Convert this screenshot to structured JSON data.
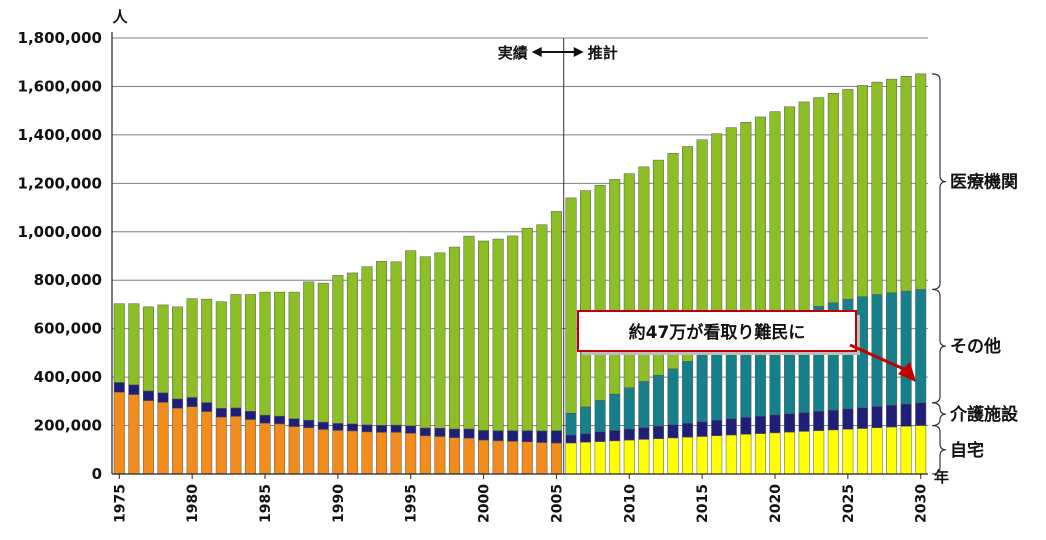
{
  "chart_data": {
    "type": "bar",
    "stacked": true,
    "title": "",
    "ylabel": "人",
    "xlabel": "年",
    "ylim": [
      0,
      1800000
    ],
    "yticks": [
      0,
      200000,
      400000,
      600000,
      800000,
      1000000,
      1200000,
      1400000,
      1600000,
      1800000
    ],
    "ytick_labels": [
      "0",
      "200,000",
      "400,000",
      "600,000",
      "800,000",
      "1,000,000",
      "1,200,000",
      "1,400,000",
      "1,600,000",
      "1,800,000"
    ],
    "x_start": 1975,
    "x_end": 2030,
    "xtick_labels": [
      "1975",
      "1980",
      "1985",
      "1990",
      "1995",
      "2000",
      "2005",
      "2010",
      "2015",
      "2020",
      "2025",
      "2030"
    ],
    "grid": "horizontal",
    "legend": "right side braces",
    "divider": {
      "year": 2005.5,
      "left_label": "実績",
      "right_label": "推計"
    },
    "annotation": {
      "text": "約47万が看取り難民に",
      "arrow_color": "#c00000"
    },
    "categories_right": [
      "医療機関",
      "その他",
      "介護施設",
      "自宅"
    ],
    "colors": {
      "home_actual": "#f28c1c",
      "home_projected": "#ffff00",
      "care_facility": "#1f1f7a",
      "other": "#16808a",
      "hospital": "#8cbf26",
      "grid": "#7f7f7f"
    },
    "totals": [
      703000,
      703000,
      690000,
      698000,
      690000,
      724000,
      722000,
      711000,
      741000,
      741000,
      751000,
      751000,
      751000,
      793000,
      788000,
      820000,
      830000,
      856000,
      878000,
      876000,
      922000,
      897000,
      913000,
      937000,
      982000,
      962000,
      970000,
      983000,
      1015000,
      1029000,
      1084000,
      1140000,
      1170000,
      1192000,
      1216000,
      1240000,
      1268000,
      1296000,
      1324000,
      1352000,
      1380000,
      1405000,
      1430000,
      1452000,
      1474000,
      1496000,
      1516000,
      1536000,
      1554000,
      1572000,
      1588000,
      1604000,
      1618000,
      1630000,
      1642000,
      1652000
    ],
    "home": [
      338000,
      328000,
      303000,
      296000,
      272000,
      278000,
      258000,
      235000,
      238000,
      225000,
      210000,
      207000,
      196000,
      191000,
      184000,
      180000,
      178000,
      174000,
      172000,
      172000,
      168000,
      158000,
      155000,
      150000,
      148000,
      140000,
      137000,
      135000,
      133000,
      130000,
      128000,
      128000,
      131000,
      134000,
      137000,
      140000,
      143000,
      146000,
      149000,
      152000,
      155000,
      158000,
      161000,
      164000,
      167000,
      170000,
      173000,
      176000,
      179000,
      182000,
      185000,
      188000,
      191000,
      194000,
      197000,
      200000
    ],
    "care_facility": [
      40000,
      40000,
      40000,
      39000,
      38000,
      38000,
      37000,
      36000,
      35000,
      34000,
      33000,
      32000,
      32000,
      31000,
      30000,
      29000,
      29000,
      29000,
      29000,
      30000,
      31000,
      32000,
      34000,
      36000,
      38000,
      40000,
      42000,
      44000,
      46000,
      48000,
      51000,
      33000,
      36000,
      40000,
      43000,
      46000,
      49000,
      52000,
      55000,
      58000,
      61000,
      64000,
      67000,
      70000,
      72000,
      74000,
      76000,
      78000,
      80000,
      82000,
      84000,
      86000,
      88000,
      90000,
      92000,
      94000
    ],
    "other": [
      0,
      0,
      0,
      0,
      0,
      0,
      0,
      0,
      0,
      0,
      0,
      0,
      0,
      0,
      0,
      0,
      0,
      0,
      0,
      0,
      0,
      0,
      0,
      0,
      0,
      0,
      0,
      0,
      0,
      0,
      0,
      90000,
      110000,
      130000,
      150000,
      170000,
      190000,
      210000,
      230000,
      255000,
      280000,
      305000,
      330000,
      350000,
      370000,
      388000,
      405000,
      420000,
      433000,
      443000,
      452000,
      458000,
      462000,
      464000,
      466000,
      468000
    ]
  }
}
